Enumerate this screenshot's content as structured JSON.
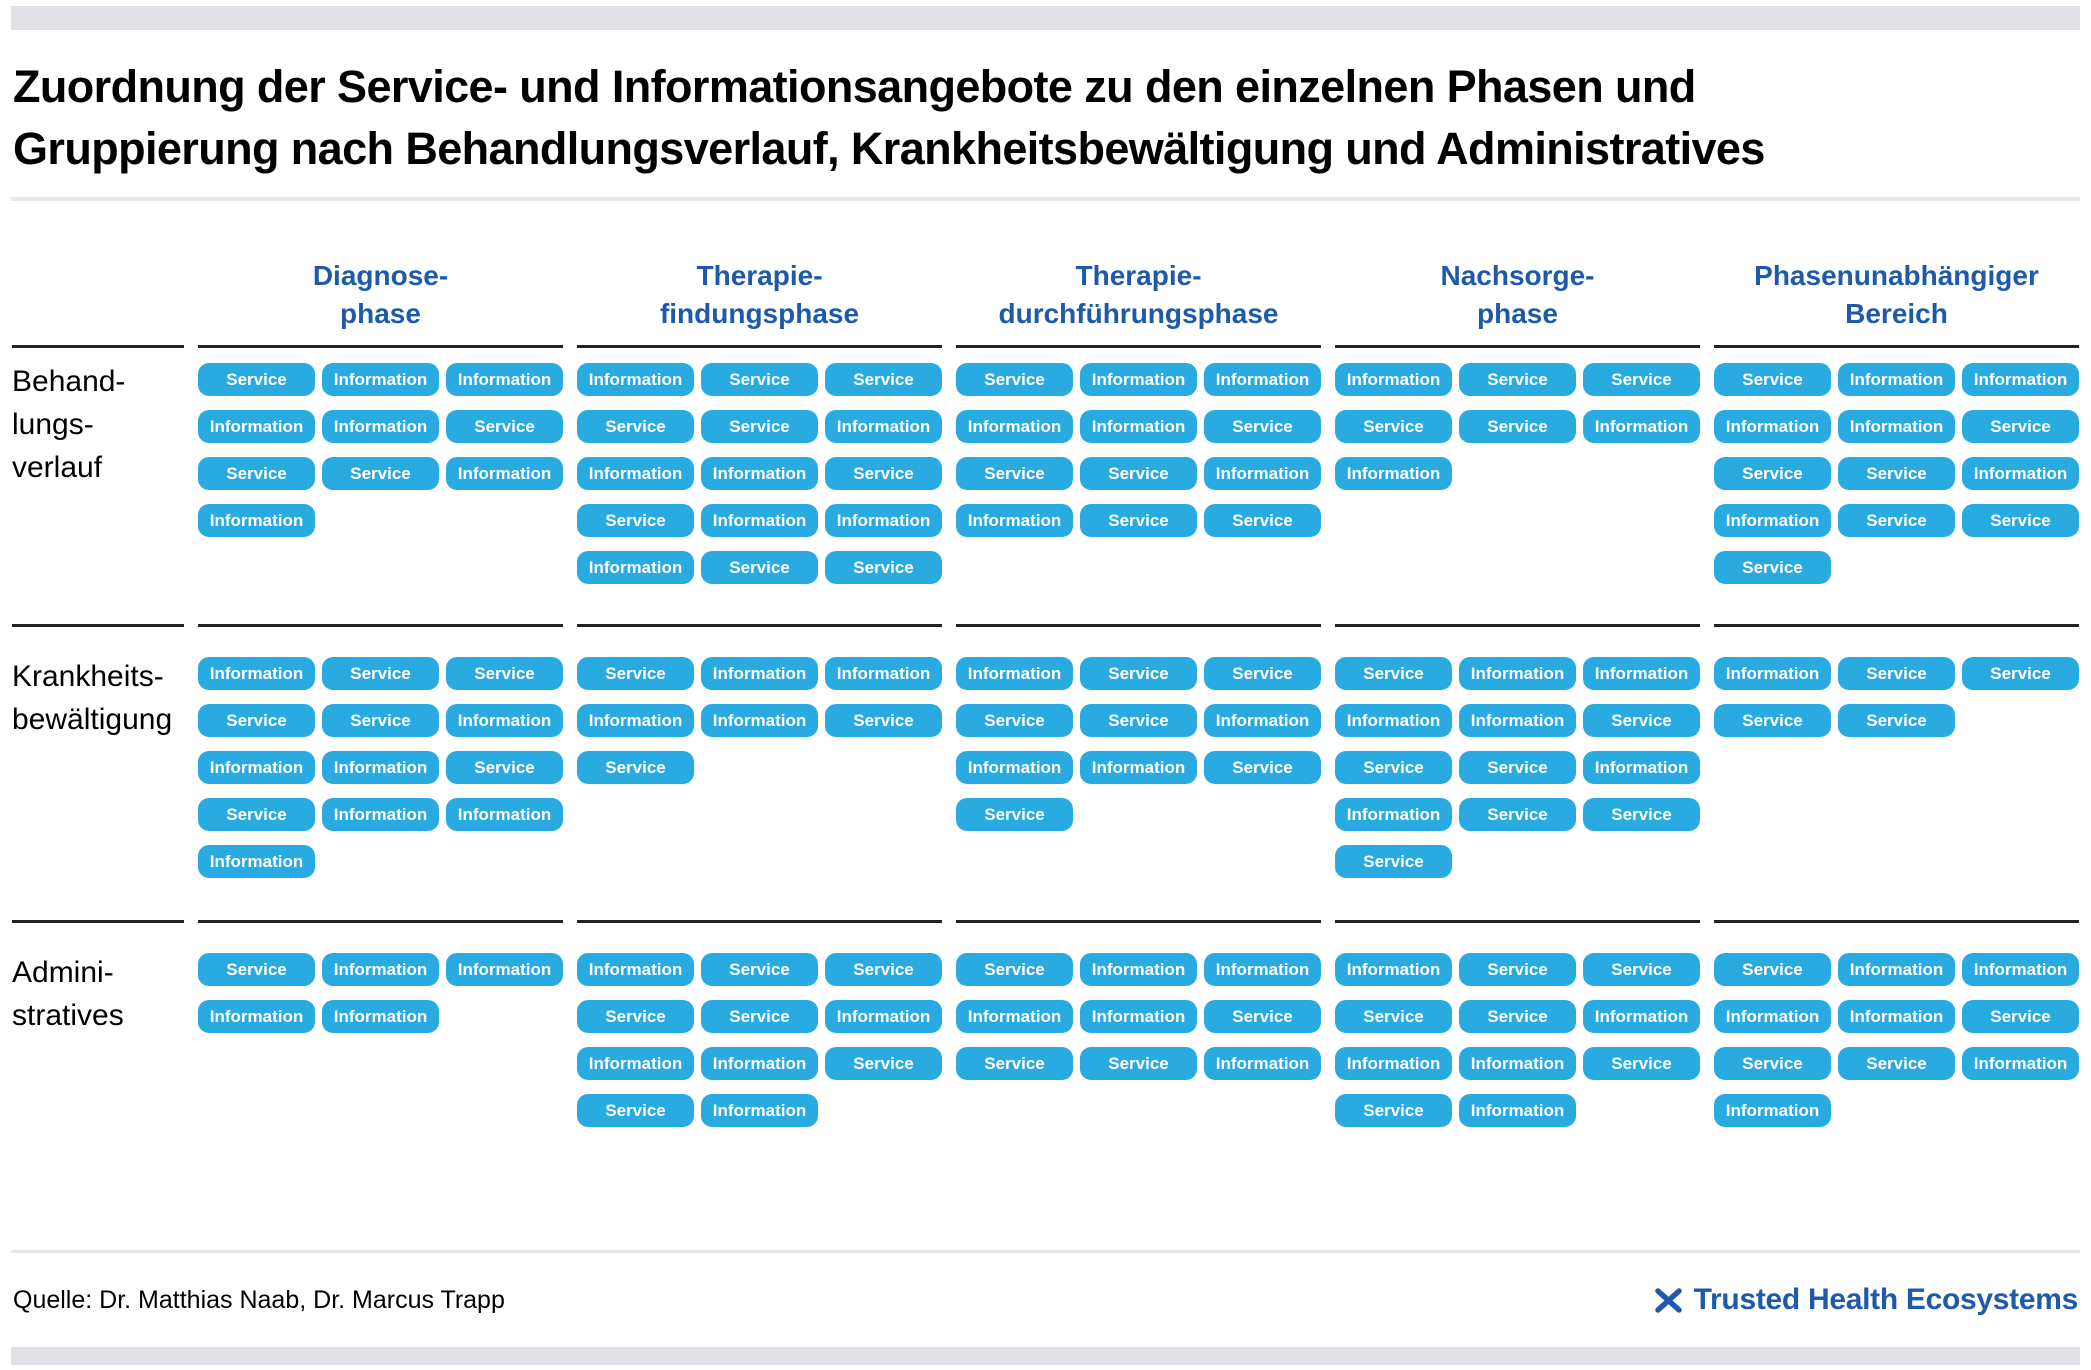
{
  "title": {
    "line1": "Zuordnung der Service- und Informationsangebote zu den einzelnen Phasen und",
    "line2": "Gruppierung nach Behandlungsverlauf, Krankheitsbewältigung und Administratives"
  },
  "columns": [
    {
      "id": "diagnose",
      "lines": [
        "Diagnose-",
        "phase"
      ]
    },
    {
      "id": "therapiefindung",
      "lines": [
        "Therapie-",
        "findungsphase"
      ]
    },
    {
      "id": "durchfuehrung",
      "lines": [
        "Therapie-",
        "durchführungsphase"
      ]
    },
    {
      "id": "nachsorge",
      "lines": [
        "Nachsorge-",
        "phase"
      ]
    },
    {
      "id": "phasenunabhaengig",
      "lines": [
        "Phasenunabhängiger",
        "Bereich"
      ]
    }
  ],
  "rows": [
    {
      "id": "behandlungsverlauf",
      "lines": [
        "Behand-",
        "lungs-",
        "verlauf"
      ]
    },
    {
      "id": "krankheitsbewaeltigung",
      "lines": [
        "Krankheits-",
        "bewältigung"
      ]
    },
    {
      "id": "administratives",
      "lines": [
        "Admini-",
        "stratives"
      ]
    }
  ],
  "cells": {
    "behandlungsverlauf": {
      "diagnose": [
        "Service",
        "Information",
        "Information",
        "Information",
        "Information",
        "Service",
        "Service",
        "Service",
        "Information",
        "Information"
      ],
      "therapiefindung": [
        "Information",
        "Service",
        "Service",
        "Service",
        "Service",
        "Information",
        "Information",
        "Information",
        "Service",
        "Service",
        "Information",
        "Information",
        "Information",
        "Service",
        "Service"
      ],
      "durchfuehrung": [
        "Service",
        "Information",
        "Information",
        "Information",
        "Information",
        "Service",
        "Service",
        "Service",
        "Information",
        "Information",
        "Service",
        "Service"
      ],
      "nachsorge": [
        "Information",
        "Service",
        "Service",
        "Service",
        "Service",
        "Information",
        "Information"
      ],
      "phasenunabhaengig": [
        "Service",
        "Information",
        "Information",
        "Information",
        "Information",
        "Service",
        "Service",
        "Service",
        "Information",
        "Information",
        "Service",
        "Service",
        "Service"
      ]
    },
    "krankheitsbewaeltigung": {
      "diagnose": [
        "Information",
        "Service",
        "Service",
        "Service",
        "Service",
        "Information",
        "Information",
        "Information",
        "Service",
        "Service",
        "Information",
        "Information",
        "Information"
      ],
      "therapiefindung": [
        "Service",
        "Information",
        "Information",
        "Information",
        "Information",
        "Service",
        "Service"
      ],
      "durchfuehrung": [
        "Information",
        "Service",
        "Service",
        "Service",
        "Service",
        "Information",
        "Information",
        "Information",
        "Service",
        "Service"
      ],
      "nachsorge": [
        "Service",
        "Information",
        "Information",
        "Information",
        "Information",
        "Service",
        "Service",
        "Service",
        "Information",
        "Information",
        "Service",
        "Service",
        "Service"
      ],
      "phasenunabhaengig": [
        "Information",
        "Service",
        "Service",
        "Service",
        "Service"
      ]
    },
    "administratives": {
      "diagnose": [
        "Service",
        "Information",
        "Information",
        "Information",
        "Information"
      ],
      "therapiefindung": [
        "Information",
        "Service",
        "Service",
        "Service",
        "Service",
        "Information",
        "Information",
        "Information",
        "Service",
        "Service",
        "Information"
      ],
      "durchfuehrung": [
        "Service",
        "Information",
        "Information",
        "Information",
        "Information",
        "Service",
        "Service",
        "Service",
        "Information"
      ],
      "nachsorge": [
        "Information",
        "Service",
        "Service",
        "Service",
        "Service",
        "Information",
        "Information",
        "Information",
        "Service",
        "Service",
        "Information"
      ],
      "phasenunabhaengig": [
        "Service",
        "Information",
        "Information",
        "Information",
        "Information",
        "Service",
        "Service",
        "Service",
        "Information",
        "Information"
      ]
    }
  },
  "footer": {
    "source": "Quelle: Dr. Matthias Naab, Dr. Marcus Trapp",
    "brand": "Trusted Health Ecosystems"
  },
  "colors": {
    "badge": "#29ABE2",
    "heading_blue": "#1E5AA9",
    "bar_gray": "#DFE1E6",
    "divider_gray": "#E7E8EC",
    "rule_dark": "#222222",
    "logo_green_dark": "#2F7D46",
    "logo_green_light": "#7CC24A"
  }
}
